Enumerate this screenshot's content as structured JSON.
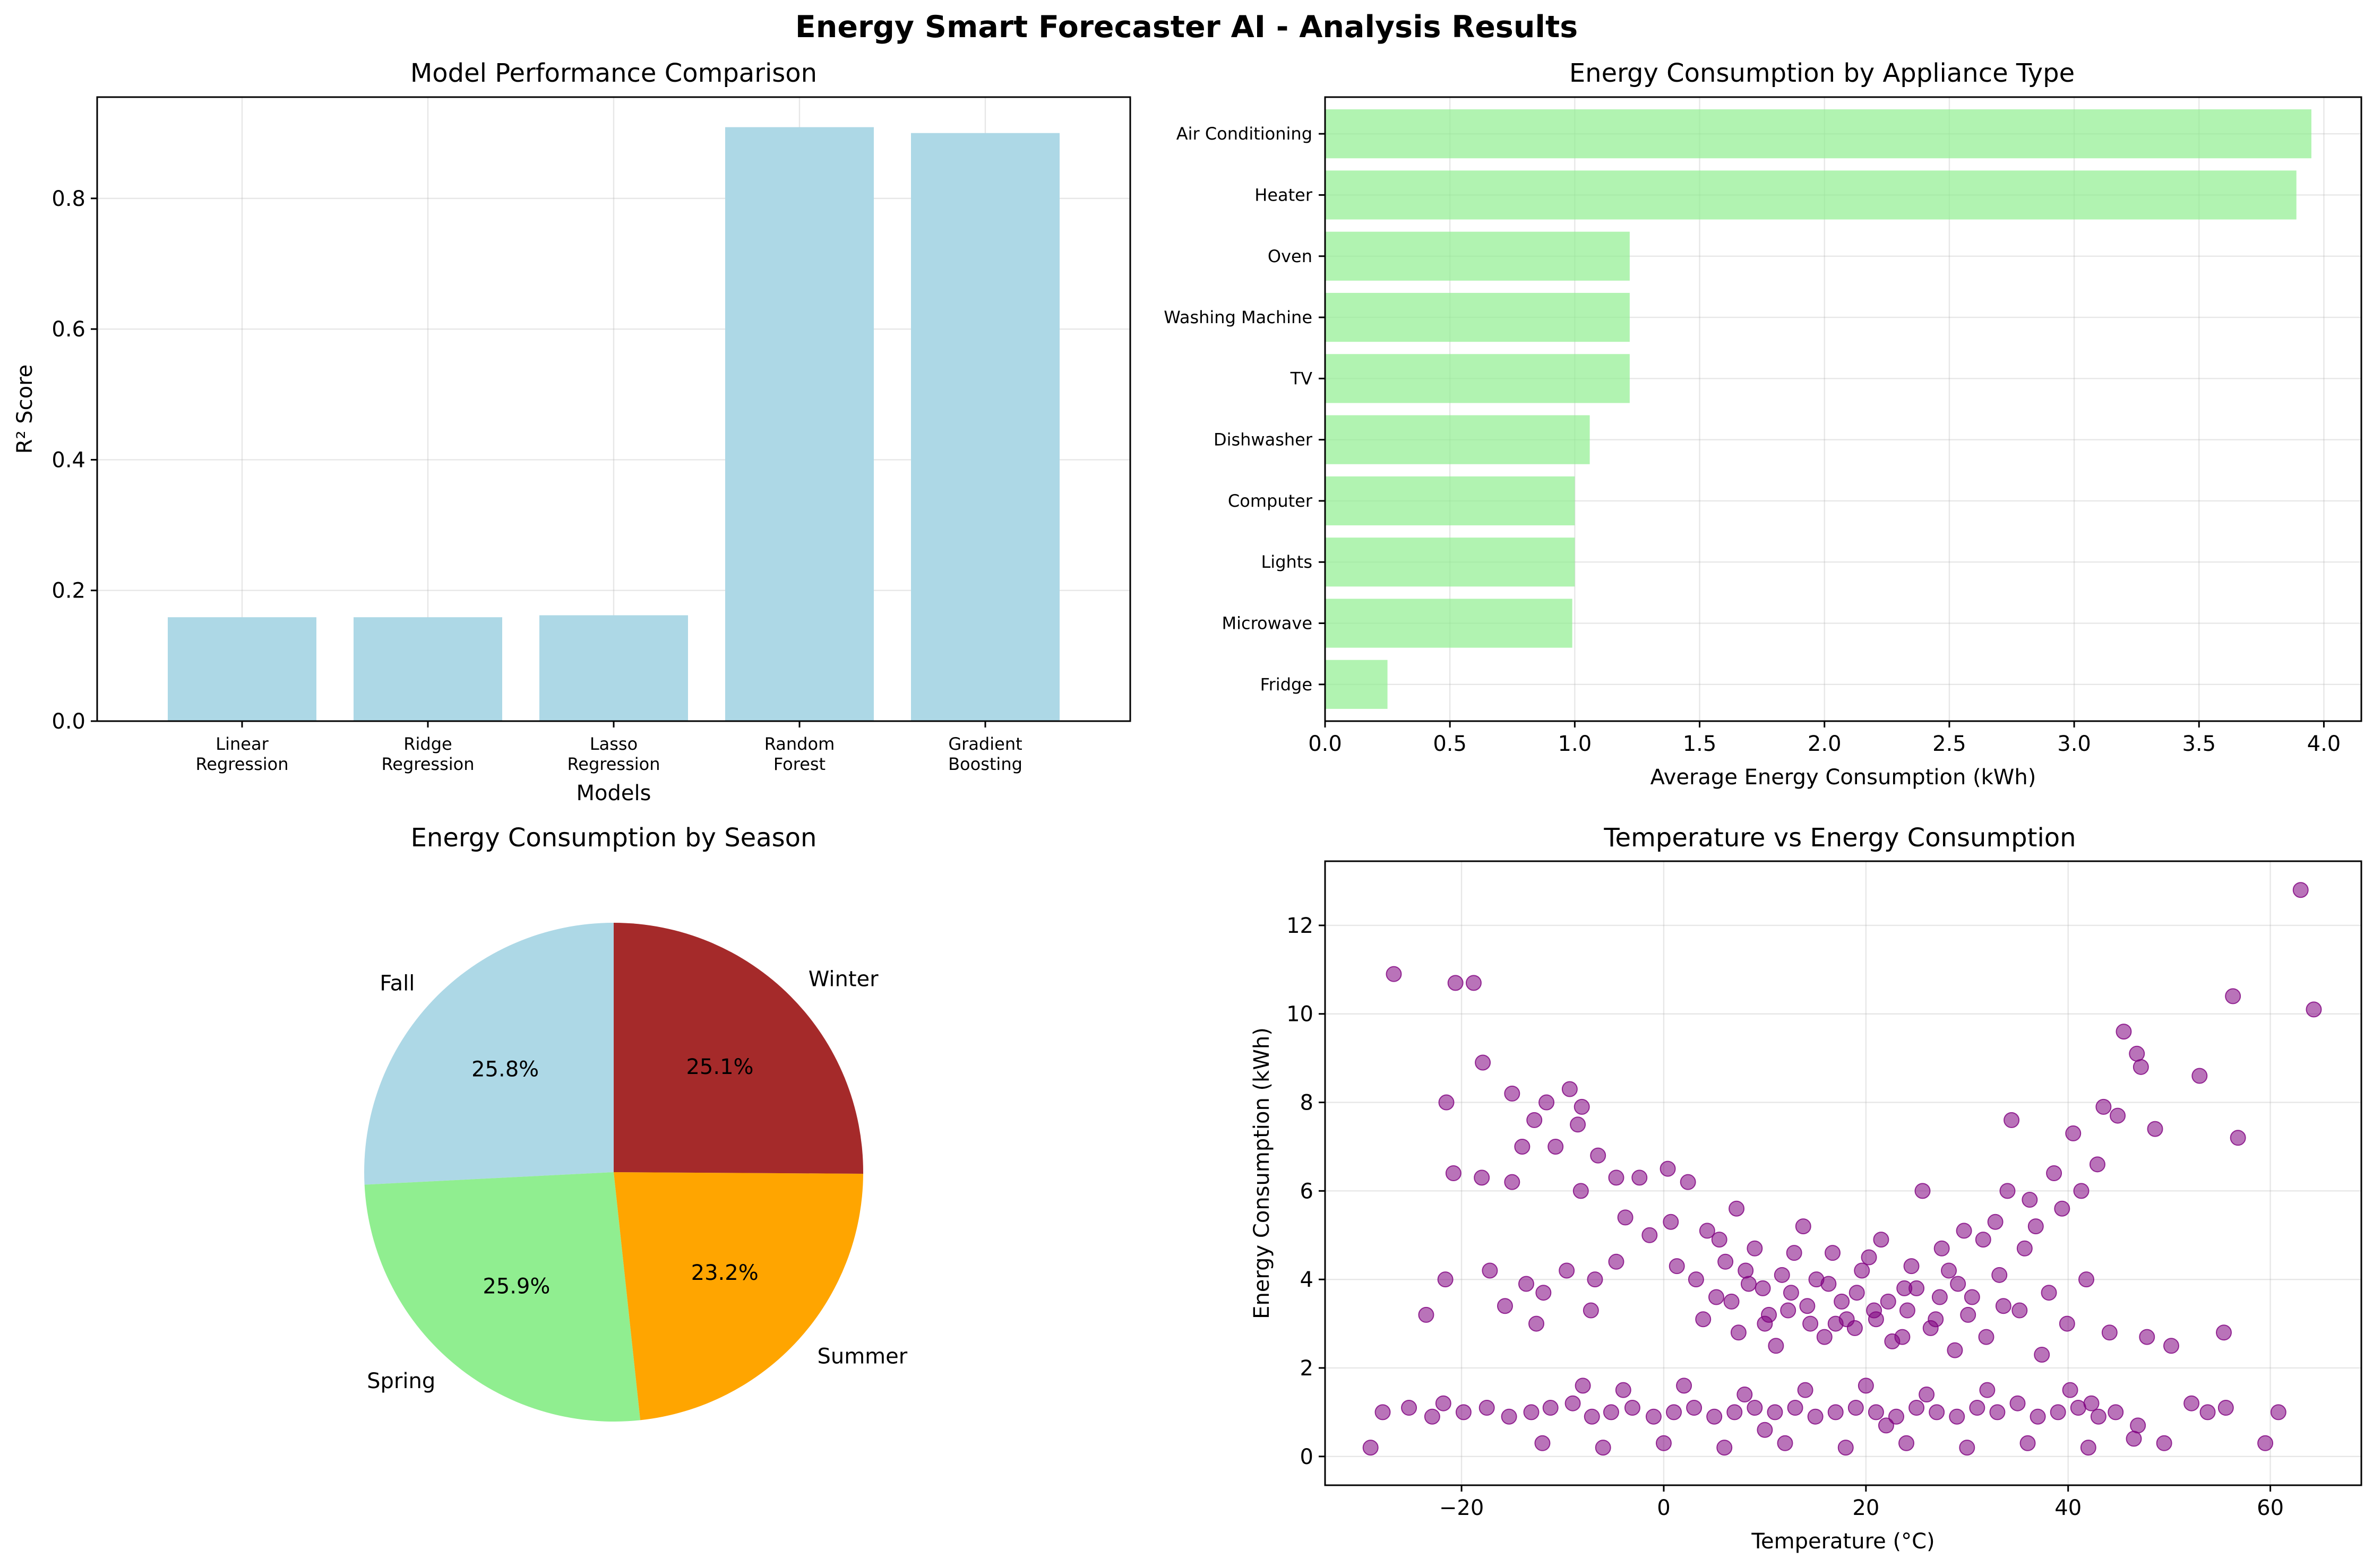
{
  "figure": {
    "title": "Energy Smart Forecaster AI - Analysis Results"
  },
  "chart_data": [
    {
      "type": "bar",
      "title": "Model Performance Comparison",
      "xlabel": "Models",
      "ylabel": "R² Score",
      "categories": [
        "Linear\nRegression",
        "Ridge\nRegression",
        "Lasso\nRegression",
        "Random\nForest",
        "Gradient\nBoosting"
      ],
      "values": [
        0.159,
        0.159,
        0.162,
        0.909,
        0.9
      ],
      "ylim": [
        0,
        0.955
      ],
      "yticks": [
        "0.0",
        "0.2",
        "0.4",
        "0.6",
        "0.8"
      ],
      "color": "#add8e6",
      "grid": true
    },
    {
      "type": "bar",
      "orientation": "horizontal",
      "title": "Energy Consumption by Appliance Type",
      "xlabel": "Average Energy Consumption (kWh)",
      "ylabel": "",
      "categories": [
        "Air Conditioning",
        "Heater",
        "Oven",
        "Washing Machine",
        "TV",
        "Dishwasher",
        "Computer",
        "Lights",
        "Microwave",
        "Fridge"
      ],
      "values": [
        3.95,
        3.89,
        1.22,
        1.22,
        1.22,
        1.06,
        1.0,
        1.0,
        0.99,
        0.25
      ],
      "xlim": [
        0,
        4.15
      ],
      "xticks": [
        "0.0",
        "0.5",
        "1.0",
        "1.5",
        "2.0",
        "2.5",
        "3.0",
        "3.5",
        "4.0"
      ],
      "color": "#90ee90",
      "grid": true
    },
    {
      "type": "pie",
      "title": "Energy Consumption by Season",
      "slices": [
        {
          "label": "Fall",
          "percent": 25.8,
          "text": "25.8%",
          "color": "#add8e6"
        },
        {
          "label": "Spring",
          "percent": 25.9,
          "text": "25.9%",
          "color": "#90ee90"
        },
        {
          "label": "Summer",
          "percent": 23.2,
          "text": "23.2%",
          "color": "#ffa500"
        },
        {
          "label": "Winter",
          "percent": 25.1,
          "text": "25.1%",
          "color": "#a52a2a"
        }
      ],
      "start_angle": 90
    },
    {
      "type": "scatter",
      "title": "Temperature vs Energy Consumption",
      "xlabel": "Temperature (°C)",
      "ylabel": "Energy Consumption (kWh)",
      "xlim": [
        -33.5,
        69
      ],
      "ylim": [
        -0.65,
        13.45
      ],
      "xticks": [
        "−20",
        "0",
        "20",
        "40",
        "60"
      ],
      "yticks": [
        "0",
        "2",
        "4",
        "6",
        "8",
        "10",
        "12"
      ],
      "color": "#800080",
      "grid": true,
      "points": [
        [
          -29,
          0.2
        ],
        [
          -26.7,
          10.9
        ],
        [
          -20.6,
          10.7
        ],
        [
          -18.8,
          10.7
        ],
        [
          -17.9,
          8.9
        ],
        [
          -15,
          8.2
        ],
        [
          -21.5,
          8.0
        ],
        [
          -9.3,
          8.3
        ],
        [
          -11.6,
          8.0
        ],
        [
          -8.1,
          7.9
        ],
        [
          -12.8,
          7.6
        ],
        [
          -8.5,
          7.5
        ],
        [
          -14,
          7.0
        ],
        [
          -10.7,
          7.0
        ],
        [
          -6.5,
          6.8
        ],
        [
          -20.8,
          6.4
        ],
        [
          -18,
          6.3
        ],
        [
          -15,
          6.2
        ],
        [
          -8.2,
          6.0
        ],
        [
          -4.7,
          6.3
        ],
        [
          -23.5,
          3.2
        ],
        [
          -21.6,
          4.0
        ],
        [
          -21.8,
          1.2
        ],
        [
          -17.2,
          4.2
        ],
        [
          -13.6,
          3.9
        ],
        [
          -11.9,
          3.7
        ],
        [
          -9.6,
          4.2
        ],
        [
          -6.8,
          4.0
        ],
        [
          -4.7,
          4.4
        ],
        [
          -15.7,
          3.4
        ],
        [
          -12.6,
          3.0
        ],
        [
          -7.2,
          3.3
        ],
        [
          -3.8,
          5.4
        ],
        [
          -2.4,
          6.3
        ],
        [
          0.4,
          6.5
        ],
        [
          -1.4,
          5.0
        ],
        [
          0.7,
          5.3
        ],
        [
          2.4,
          6.2
        ],
        [
          3.2,
          4.0
        ],
        [
          4.3,
          5.1
        ],
        [
          5.2,
          3.6
        ],
        [
          6.1,
          4.4
        ],
        [
          7.2,
          5.6
        ],
        [
          8.4,
          3.9
        ],
        [
          9.0,
          4.7
        ],
        [
          10.4,
          3.2
        ],
        [
          11.7,
          4.1
        ],
        [
          12.6,
          3.7
        ],
        [
          13.8,
          5.2
        ],
        [
          14.5,
          3.0
        ],
        [
          15.9,
          2.7
        ],
        [
          16.7,
          4.6
        ],
        [
          17.6,
          3.5
        ],
        [
          18.9,
          2.9
        ],
        [
          19.6,
          4.2
        ],
        [
          20.8,
          3.3
        ],
        [
          21.5,
          4.9
        ],
        [
          22.6,
          2.6
        ],
        [
          23.8,
          3.8
        ],
        [
          24.5,
          4.3
        ],
        [
          25.6,
          6.0
        ],
        [
          26.9,
          3.1
        ],
        [
          27.5,
          4.7
        ],
        [
          28.8,
          2.4
        ],
        [
          29.7,
          5.1
        ],
        [
          30.5,
          3.6
        ],
        [
          31.6,
          4.9
        ],
        [
          32.8,
          5.3
        ],
        [
          33.6,
          3.4
        ],
        [
          34.4,
          7.6
        ],
        [
          35.7,
          4.7
        ],
        [
          36.8,
          5.2
        ],
        [
          37.4,
          2.3
        ],
        [
          38.6,
          6.4
        ],
        [
          39.9,
          3.0
        ],
        [
          40.5,
          7.3
        ],
        [
          41.3,
          6.0
        ],
        [
          42.9,
          6.6
        ],
        [
          43.5,
          7.9
        ],
        [
          44.9,
          7.7
        ],
        [
          45.5,
          9.6
        ],
        [
          46.8,
          9.1
        ],
        [
          47.2,
          8.8
        ],
        [
          48.6,
          7.4
        ],
        [
          53,
          8.6
        ],
        [
          56.3,
          10.4
        ],
        [
          56.8,
          7.2
        ],
        [
          63,
          12.8
        ],
        [
          64.3,
          10.1
        ],
        [
          60.8,
          1.0
        ],
        [
          59.5,
          0.3
        ],
        [
          55.4,
          2.8
        ],
        [
          50.2,
          2.5
        ],
        [
          47.8,
          2.7
        ],
        [
          44.1,
          2.8
        ],
        [
          52.2,
          1.2
        ],
        [
          53.8,
          1.0
        ],
        [
          55.6,
          1.1
        ],
        [
          49.5,
          0.3
        ],
        [
          46.5,
          0.4
        ],
        [
          1.3,
          4.3
        ],
        [
          3.9,
          3.1
        ],
        [
          5.5,
          4.9
        ],
        [
          7.4,
          2.8
        ],
        [
          9.8,
          3.8
        ],
        [
          11.1,
          2.5
        ],
        [
          12.9,
          4.6
        ],
        [
          14.2,
          3.4
        ],
        [
          16.3,
          3.9
        ],
        [
          18.1,
          3.1
        ],
        [
          20.3,
          4.5
        ],
        [
          22.2,
          3.5
        ],
        [
          23.6,
          2.7
        ],
        [
          25.0,
          3.8
        ],
        [
          26.4,
          2.9
        ],
        [
          28.2,
          4.2
        ],
        [
          30.1,
          3.2
        ],
        [
          31.9,
          2.7
        ],
        [
          33.2,
          4.1
        ],
        [
          35.2,
          3.3
        ],
        [
          6.7,
          3.5
        ],
        [
          8.1,
          4.2
        ],
        [
          10.0,
          3.0
        ],
        [
          12.3,
          3.3
        ],
        [
          15.1,
          4.0
        ],
        [
          17.0,
          3.0
        ],
        [
          19.1,
          3.7
        ],
        [
          21.0,
          3.1
        ],
        [
          24.1,
          3.3
        ],
        [
          27.3,
          3.6
        ],
        [
          29.1,
          3.9
        ],
        [
          34.0,
          6.0
        ],
        [
          36.2,
          5.8
        ],
        [
          38.1,
          3.7
        ],
        [
          39.4,
          5.6
        ],
        [
          41.8,
          4.0
        ],
        [
          40.2,
          1.5
        ],
        [
          42.3,
          1.2
        ],
        [
          44.7,
          1.0
        ],
        [
          46.9,
          0.7
        ],
        [
          -27.8,
          1.0
        ],
        [
          -25.2,
          1.1
        ],
        [
          -22.9,
          0.9
        ],
        [
          -19.8,
          1.0
        ],
        [
          -17.5,
          1.1
        ],
        [
          -15.3,
          0.9
        ],
        [
          -13.1,
          1.0
        ],
        [
          -11.2,
          1.1
        ],
        [
          -9.0,
          1.2
        ],
        [
          -7.1,
          0.9
        ],
        [
          -5.2,
          1.0
        ],
        [
          -3.1,
          1.1
        ],
        [
          -1.0,
          0.9
        ],
        [
          1.0,
          1.0
        ],
        [
          3.0,
          1.1
        ],
        [
          5.0,
          0.9
        ],
        [
          7.0,
          1.0
        ],
        [
          9.0,
          1.1
        ],
        [
          11.0,
          1.0
        ],
        [
          13.0,
          1.1
        ],
        [
          15.0,
          0.9
        ],
        [
          17.0,
          1.0
        ],
        [
          19.0,
          1.1
        ],
        [
          21.0,
          1.0
        ],
        [
          23.0,
          0.9
        ],
        [
          25.0,
          1.1
        ],
        [
          27.0,
          1.0
        ],
        [
          29.0,
          0.9
        ],
        [
          31.0,
          1.1
        ],
        [
          33.0,
          1.0
        ],
        [
          35.0,
          1.2
        ],
        [
          37.0,
          0.9
        ],
        [
          39.0,
          1.0
        ],
        [
          41.0,
          1.1
        ],
        [
          43.0,
          0.9
        ],
        [
          -12.0,
          0.3
        ],
        [
          -6.0,
          0.2
        ],
        [
          0.0,
          0.3
        ],
        [
          6.0,
          0.2
        ],
        [
          12.0,
          0.3
        ],
        [
          18.0,
          0.2
        ],
        [
          24.0,
          0.3
        ],
        [
          30.0,
          0.2
        ],
        [
          36.0,
          0.3
        ],
        [
          42.0,
          0.2
        ],
        [
          -4.0,
          1.5
        ],
        [
          2.0,
          1.6
        ],
        [
          8.0,
          1.4
        ],
        [
          14.0,
          1.5
        ],
        [
          20.0,
          1.6
        ],
        [
          26.0,
          1.4
        ],
        [
          32.0,
          1.5
        ],
        [
          -8.0,
          1.6
        ],
        [
          10.0,
          0.6
        ],
        [
          22.0,
          0.7
        ]
      ]
    }
  ]
}
